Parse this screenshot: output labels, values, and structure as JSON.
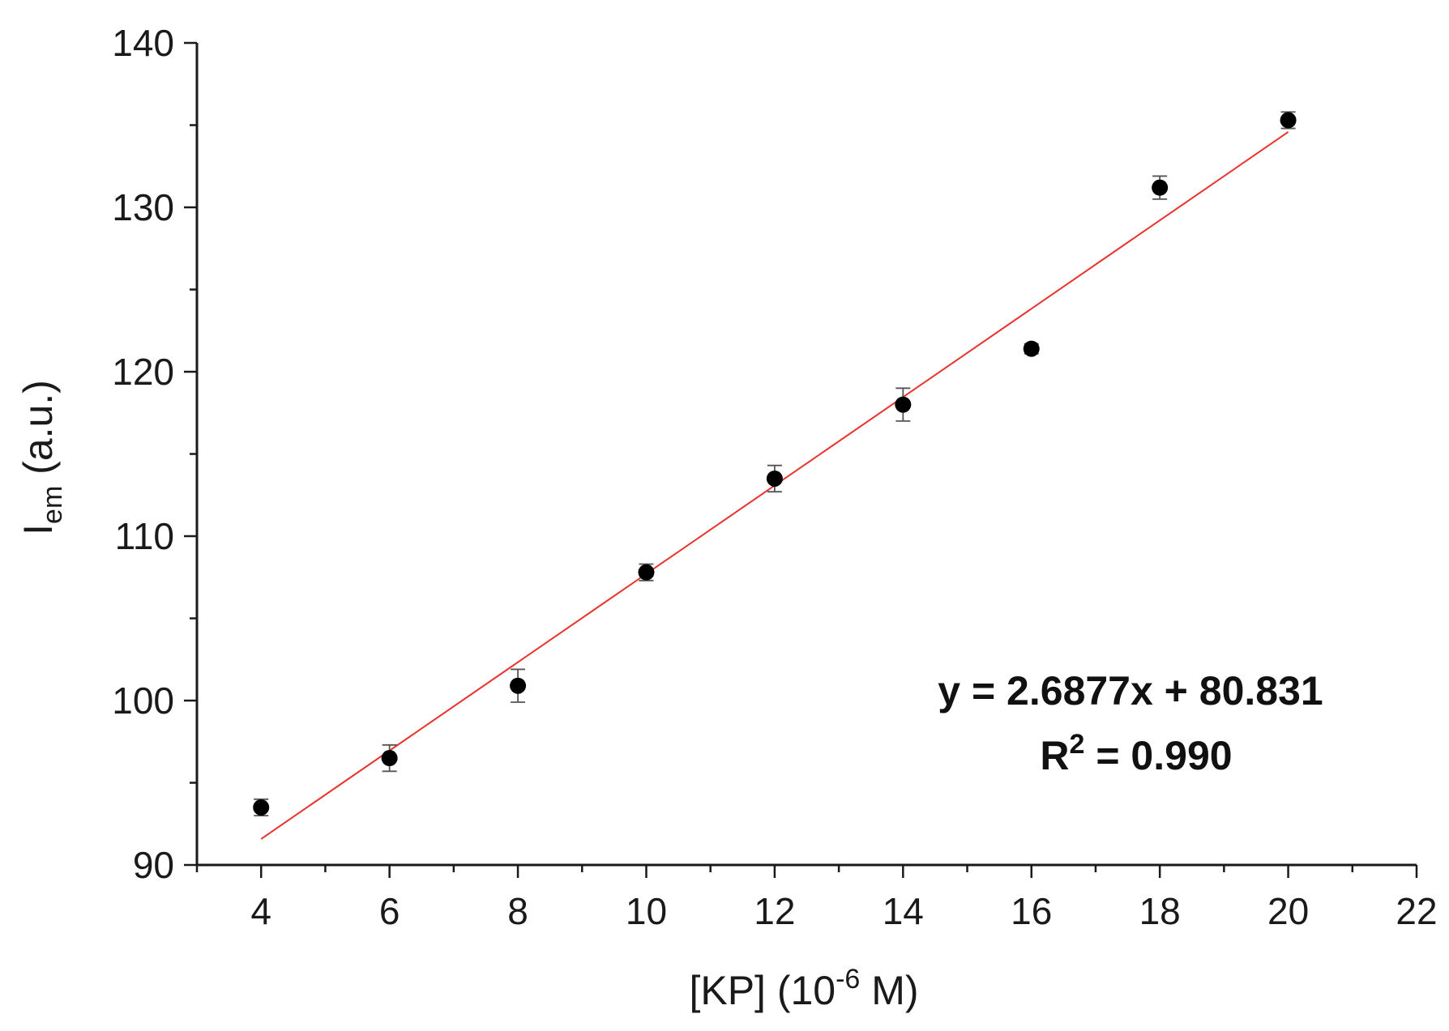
{
  "chart_data": {
    "type": "scatter",
    "title": "",
    "xlabel": {
      "main": "[KP] (10",
      "sup": "-6",
      "tail": " M)"
    },
    "ylabel": {
      "main": "I",
      "sub": "em",
      "tail": " (a.u.)"
    },
    "xlim": [
      3,
      22
    ],
    "ylim": [
      90,
      140
    ],
    "xticks": [
      4,
      6,
      8,
      10,
      12,
      14,
      16,
      18,
      20,
      22
    ],
    "yticks": [
      90,
      100,
      110,
      120,
      130,
      140
    ],
    "grid": false,
    "series": [
      {
        "x": [
          4,
          6,
          8,
          10,
          12,
          14,
          16,
          18,
          20
        ],
        "y": [
          93.5,
          96.5,
          100.9,
          107.8,
          113.5,
          118.0,
          121.4,
          131.2,
          135.3
        ],
        "yerr": [
          0.5,
          0.8,
          1.0,
          0.5,
          0.8,
          1.0,
          0.3,
          0.7,
          0.5
        ]
      }
    ],
    "fit": {
      "slope": 2.6877,
      "intercept": 80.831,
      "x_range": [
        4,
        20
      ],
      "color": "#e8322e"
    },
    "annotation": {
      "line1": "y = 2.6877x + 80.831",
      "line2_main": "R",
      "line2_sup": "2",
      "line2_tail": " = 0.990"
    },
    "colors": {
      "marker": "#000000",
      "errorbar": "#555555",
      "axis": "#1a1a1a"
    }
  }
}
